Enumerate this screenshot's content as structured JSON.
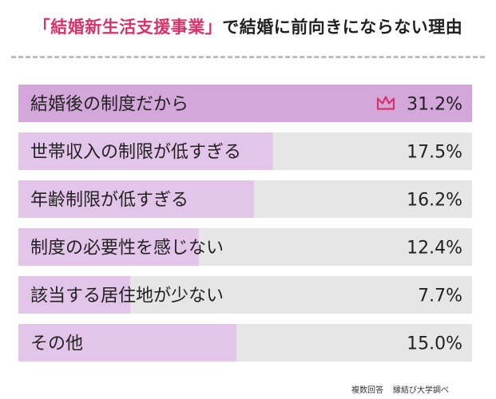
{
  "header": {
    "title_highlight": "「結婚新生活支援事業」",
    "title_rest": "で結婚に前向きにならない理由"
  },
  "footer": {
    "note_left": "複数回答",
    "note_right": "縁結び大学調べ"
  },
  "colors": {
    "track": "#e6e6e6",
    "top_bar": "#d3a7da",
    "bar": "#e4c5ea",
    "highlight": "#d6336c",
    "crown": "#d6336c"
  },
  "top_item_icon": "crown-icon",
  "chart_data": {
    "type": "bar",
    "orientation": "horizontal",
    "categories": [
      "結婚後の制度だから",
      "世帯収入の制限が低すぎる",
      "年齢制限が低すぎる",
      "制度の必要性を感じない",
      "該当する居住地が少ない",
      "その他"
    ],
    "values": [
      31.2,
      17.5,
      16.2,
      12.4,
      7.7,
      15.0
    ],
    "value_labels": [
      "31.2%",
      "17.5%",
      "16.2%",
      "12.4%",
      "7.7%",
      "15.0%"
    ],
    "unit": "%",
    "xlim": [
      0,
      31.2
    ]
  }
}
